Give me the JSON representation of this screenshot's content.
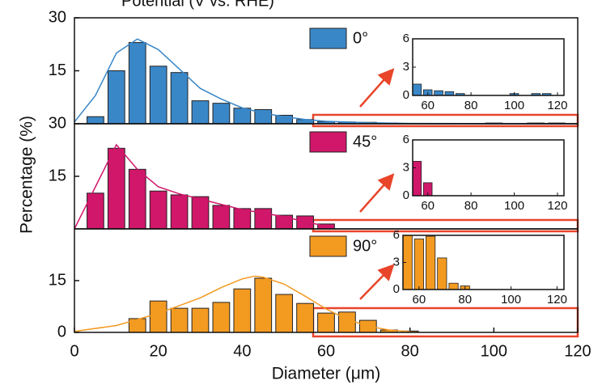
{
  "chart_data": {
    "title": "Potential (V vs. RHE)",
    "xlabel": "Diameter (μm)",
    "ylabel": "Percentage (%)",
    "xlim": [
      0,
      120
    ],
    "xticks": [
      0,
      20,
      40,
      60,
      80,
      100,
      120
    ],
    "panels": [
      {
        "type": "bar",
        "x": [
          5,
          10,
          15,
          20,
          25,
          30,
          35,
          40,
          45,
          50,
          55,
          60,
          65,
          70,
          75,
          100,
          110,
          115
        ],
        "series": [
          {
            "name": "0°",
            "color": "#3a87c8",
            "values": [
              2,
              15,
              23,
              16.3,
              14.5,
              6.5,
              5.8,
              4.4,
              4,
              2.4,
              1.2,
              0.6,
              0.5,
              0.4,
              0.2,
              0.2,
              0.2,
              0.2
            ]
          }
        ],
        "fit": {
          "x": [
            0,
            5,
            10,
            15,
            20,
            25,
            30,
            35,
            40,
            45,
            50,
            55,
            60,
            70,
            80,
            120
          ],
          "values": [
            0.5,
            8,
            20,
            24,
            21,
            15.5,
            10,
            7,
            4.5,
            3,
            2,
            1.2,
            0.7,
            0.3,
            0.1,
            0
          ]
        },
        "ylim": [
          0,
          30
        ],
        "yticks": [
          15,
          30
        ],
        "inset": {
          "xlim": [
            53,
            123
          ],
          "xticks": [
            60,
            80,
            100,
            120
          ],
          "ylim": [
            0,
            6
          ],
          "yticks": [
            0,
            3,
            6
          ]
        }
      },
      {
        "type": "bar",
        "x": [
          5,
          10,
          15,
          20,
          25,
          30,
          35,
          40,
          45,
          50,
          55,
          60
        ],
        "series": [
          {
            "name": "45°",
            "color": "#d0176a",
            "values": [
              10.2,
              23,
              17,
              10.8,
              9.7,
              9.2,
              6.7,
              5.8,
              5.8,
              3.9,
              3.7,
              1.4
            ]
          }
        ],
        "fit": {
          "x": [
            0,
            5,
            10,
            15,
            20,
            25,
            30,
            35,
            40,
            45,
            50,
            55,
            60,
            62
          ],
          "values": [
            0,
            12,
            24,
            17,
            12,
            10,
            8.5,
            7,
            5.5,
            4.5,
            3.5,
            2,
            0.8,
            0
          ]
        },
        "ylim": [
          0,
          30
        ],
        "yticks": [
          15,
          30
        ],
        "inset": {
          "xlim": [
            53,
            123
          ],
          "xticks": [
            60,
            80,
            100,
            120
          ],
          "ylim": [
            0,
            6
          ],
          "yticks": [
            0,
            3,
            6
          ]
        }
      },
      {
        "type": "bar",
        "x": [
          15,
          20,
          25,
          30,
          35,
          40,
          45,
          50,
          55,
          60,
          65,
          70,
          75,
          80
        ],
        "series": [
          {
            "name": "90°",
            "color": "#f39a21",
            "values": [
              4,
              9.1,
              7,
              7,
              8.7,
              12.6,
              15.7,
              11,
              8.4,
              5.6,
              5.9,
              3.5,
              0.7,
              0.4
            ]
          }
        ],
        "fit": {
          "x": [
            0,
            10,
            20,
            30,
            35,
            40,
            43,
            45,
            50,
            55,
            60,
            65,
            70,
            75,
            80
          ],
          "values": [
            0.3,
            2,
            5.5,
            10,
            13,
            15.5,
            16.3,
            16,
            14,
            10.5,
            6.8,
            3.8,
            1.8,
            0.7,
            0.2
          ]
        },
        "ylim": [
          0,
          30
        ],
        "yticks": [
          0,
          15
        ],
        "inset": {
          "xlim": [
            53,
            123
          ],
          "xticks": [
            60,
            80,
            100,
            120
          ],
          "ylim": [
            0,
            6
          ],
          "yticks": [
            0,
            3,
            6
          ]
        }
      }
    ]
  }
}
